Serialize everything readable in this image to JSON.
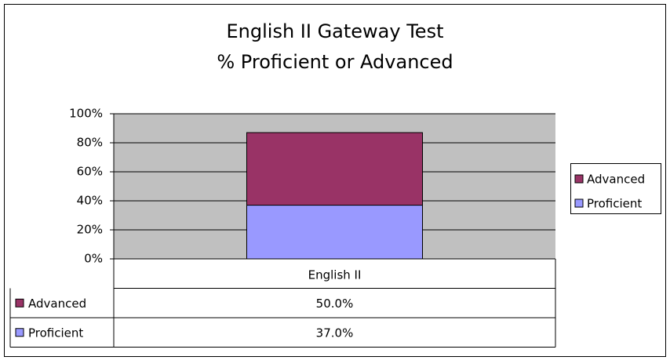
{
  "chart_data": {
    "type": "stacked_bar",
    "title": "English II Gateway Test",
    "subtitle": "% Proficient or Advanced",
    "categories": [
      "English II"
    ],
    "series": [
      {
        "name": "Proficient",
        "color": "#9999ff",
        "values": [
          37
        ],
        "value_labels": [
          "37.0%"
        ]
      },
      {
        "name": "Advanced",
        "color": "#993366",
        "values": [
          50
        ],
        "value_labels": [
          "50.0%"
        ]
      }
    ],
    "ylim": [
      0,
      100
    ],
    "yticks": [
      {
        "value": 0,
        "label": "0%"
      },
      {
        "value": 20,
        "label": "20%"
      },
      {
        "value": 40,
        "label": "40%"
      },
      {
        "value": 60,
        "label": "60%"
      },
      {
        "value": 80,
        "label": "80%"
      },
      {
        "value": 100,
        "label": "100%"
      }
    ],
    "grid": true,
    "legend": "right",
    "plot_background": "#c0c0c0"
  }
}
